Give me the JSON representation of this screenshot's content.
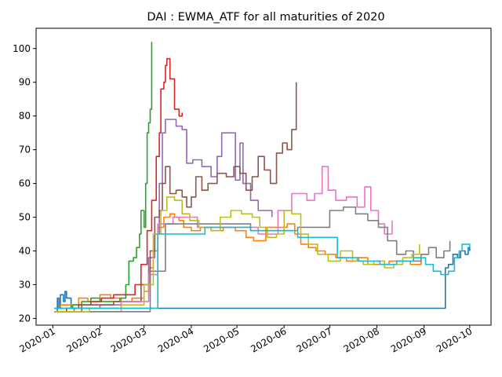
{
  "chart_data": {
    "type": "line",
    "title": "DAI : EWMA_ATF for all maturities of 2020",
    "xlabel": "",
    "ylabel": "",
    "grid": false,
    "legend": "none",
    "x_ticks": [
      "2020-01",
      "2020-02",
      "2020-03",
      "2020-04",
      "2020-05",
      "2020-06",
      "2020-07",
      "2020-08",
      "2020-09",
      "2020-10"
    ],
    "y_ticks": [
      20,
      30,
      40,
      50,
      60,
      70,
      80,
      90,
      100
    ],
    "xlim": [
      "2019-12-21",
      "2020-10-15"
    ],
    "ylim": [
      18,
      106
    ],
    "series": [
      {
        "color": "#1f77b4",
        "points": [
          [
            "2020-01-02",
            22
          ],
          [
            "2020-01-04",
            26
          ],
          [
            "2020-01-05",
            23
          ],
          [
            "2020-01-06",
            27
          ],
          [
            "2020-01-08",
            25
          ],
          [
            "2020-01-09",
            28
          ],
          [
            "2020-01-10",
            26
          ],
          [
            "2020-01-13",
            23
          ],
          [
            "2020-09-15",
            35
          ],
          [
            "2020-09-17",
            36
          ],
          [
            "2020-09-20",
            39
          ],
          [
            "2020-09-23",
            38
          ],
          [
            "2020-09-25",
            40
          ],
          [
            "2020-09-28",
            39
          ],
          [
            "2020-09-30",
            41
          ],
          [
            "2020-10-01",
            40
          ]
        ]
      },
      {
        "color": "#ff7f0e",
        "points": [
          [
            "2020-01-02",
            23
          ],
          [
            "2020-01-06",
            24
          ],
          [
            "2020-01-12",
            24
          ],
          [
            "2020-01-18",
            26
          ],
          [
            "2020-01-24",
            25
          ],
          [
            "2020-02-01",
            27
          ],
          [
            "2020-02-08",
            26
          ],
          [
            "2020-02-15",
            25
          ],
          [
            "2020-02-22",
            26
          ],
          [
            "2020-03-01",
            28
          ],
          [
            "2020-03-04",
            35
          ],
          [
            "2020-03-07",
            40
          ],
          [
            "2020-03-10",
            47
          ],
          [
            "2020-03-14",
            50
          ],
          [
            "2020-03-18",
            51
          ],
          [
            "2020-03-21",
            50
          ],
          [
            "2020-03-24",
            49
          ],
          [
            "2020-03-27",
            47
          ],
          [
            "2020-04-01",
            46
          ],
          [
            "2020-04-07",
            47
          ],
          [
            "2020-04-14",
            46
          ],
          [
            "2020-04-22",
            47
          ],
          [
            "2020-04-30",
            46
          ],
          [
            "2020-05-07",
            44
          ],
          [
            "2020-05-12",
            43
          ],
          [
            "2020-05-20",
            47
          ],
          [
            "2020-05-28",
            47
          ],
          [
            "2020-06-03",
            48
          ],
          [
            "2020-06-08",
            45
          ],
          [
            "2020-06-12",
            42
          ],
          [
            "2020-06-17",
            41
          ],
          [
            "2020-06-22",
            40
          ],
          [
            "2020-06-28",
            39
          ],
          [
            "2020-07-05",
            38
          ],
          [
            "2020-07-12",
            37
          ],
          [
            "2020-07-19",
            38
          ],
          [
            "2020-07-26",
            36
          ],
          [
            "2020-08-02",
            36
          ],
          [
            "2020-08-09",
            37
          ],
          [
            "2020-08-16",
            37
          ],
          [
            "2020-08-23",
            36
          ],
          [
            "2020-08-30",
            39
          ],
          [
            "2020-09-03",
            39
          ]
        ]
      },
      {
        "color": "#2ca02c",
        "points": [
          [
            "2020-01-02",
            23
          ],
          [
            "2020-01-08",
            23
          ],
          [
            "2020-01-14",
            24
          ],
          [
            "2020-01-20",
            25
          ],
          [
            "2020-01-26",
            26
          ],
          [
            "2020-02-01",
            25
          ],
          [
            "2020-02-08",
            25
          ],
          [
            "2020-02-14",
            26
          ],
          [
            "2020-02-18",
            30
          ],
          [
            "2020-02-20",
            37
          ],
          [
            "2020-02-23",
            38
          ],
          [
            "2020-02-25",
            41
          ],
          [
            "2020-02-27",
            45
          ],
          [
            "2020-02-28",
            52
          ],
          [
            "2020-03-01",
            47
          ],
          [
            "2020-03-02",
            60
          ],
          [
            "2020-03-03",
            75
          ],
          [
            "2020-03-04",
            78
          ],
          [
            "2020-03-05",
            82
          ],
          [
            "2020-03-06",
            102
          ]
        ]
      },
      {
        "color": "#d62728",
        "points": [
          [
            "2020-01-02",
            22
          ],
          [
            "2020-01-10",
            23
          ],
          [
            "2020-01-18",
            24
          ],
          [
            "2020-01-26",
            25
          ],
          [
            "2020-02-02",
            26
          ],
          [
            "2020-02-10",
            27
          ],
          [
            "2020-02-18",
            27
          ],
          [
            "2020-02-24",
            30
          ],
          [
            "2020-02-28",
            36
          ],
          [
            "2020-03-03",
            46
          ],
          [
            "2020-03-06",
            55
          ],
          [
            "2020-03-09",
            68
          ],
          [
            "2020-03-11",
            75
          ],
          [
            "2020-03-12",
            88
          ],
          [
            "2020-03-14",
            90
          ],
          [
            "2020-03-15",
            95
          ],
          [
            "2020-03-16",
            97
          ],
          [
            "2020-03-18",
            91
          ],
          [
            "2020-03-21",
            82
          ],
          [
            "2020-03-24",
            80
          ],
          [
            "2020-03-26",
            81
          ]
        ]
      },
      {
        "color": "#9467bd",
        "points": [
          [
            "2020-01-02",
            22
          ],
          [
            "2020-01-15",
            23
          ],
          [
            "2020-02-01",
            24
          ],
          [
            "2020-02-15",
            25
          ],
          [
            "2020-02-28",
            30
          ],
          [
            "2020-03-04",
            38
          ],
          [
            "2020-03-08",
            45
          ],
          [
            "2020-03-11",
            60
          ],
          [
            "2020-03-13",
            75
          ],
          [
            "2020-03-15",
            79
          ],
          [
            "2020-03-18",
            79
          ],
          [
            "2020-03-22",
            77
          ],
          [
            "2020-03-26",
            76
          ],
          [
            "2020-03-29",
            66
          ],
          [
            "2020-04-02",
            67
          ],
          [
            "2020-04-08",
            65
          ],
          [
            "2020-04-14",
            62
          ],
          [
            "2020-04-18",
            68
          ],
          [
            "2020-04-21",
            75
          ],
          [
            "2020-04-27",
            75
          ],
          [
            "2020-04-30",
            61
          ],
          [
            "2020-05-03",
            72
          ],
          [
            "2020-05-05",
            60
          ],
          [
            "2020-05-10",
            55
          ],
          [
            "2020-05-15",
            52
          ],
          [
            "2020-05-20",
            52
          ],
          [
            "2020-05-24",
            50
          ]
        ]
      },
      {
        "color": "#8c564b",
        "points": [
          [
            "2020-01-02",
            22
          ],
          [
            "2020-01-20",
            24
          ],
          [
            "2020-02-10",
            25
          ],
          [
            "2020-02-28",
            30
          ],
          [
            "2020-03-05",
            40
          ],
          [
            "2020-03-08",
            50
          ],
          [
            "2020-03-11",
            52
          ],
          [
            "2020-03-13",
            60
          ],
          [
            "2020-03-15",
            65
          ],
          [
            "2020-03-18",
            57
          ],
          [
            "2020-03-22",
            58
          ],
          [
            "2020-03-26",
            56
          ],
          [
            "2020-03-29",
            53
          ],
          [
            "2020-04-01",
            56
          ],
          [
            "2020-04-04",
            62
          ],
          [
            "2020-04-08",
            58
          ],
          [
            "2020-04-12",
            60
          ],
          [
            "2020-04-18",
            63
          ],
          [
            "2020-04-24",
            62
          ],
          [
            "2020-04-29",
            65
          ],
          [
            "2020-05-03",
            63
          ],
          [
            "2020-05-07",
            58
          ],
          [
            "2020-05-11",
            62
          ],
          [
            "2020-05-15",
            68
          ],
          [
            "2020-05-19",
            64
          ],
          [
            "2020-05-23",
            60
          ],
          [
            "2020-05-27",
            69
          ],
          [
            "2020-05-31",
            72
          ],
          [
            "2020-06-03",
            70
          ],
          [
            "2020-06-06",
            76
          ],
          [
            "2020-06-09",
            90
          ]
        ]
      },
      {
        "color": "#e377c2",
        "points": [
          [
            "2020-01-02",
            22
          ],
          [
            "2020-02-15",
            25
          ],
          [
            "2020-03-04",
            33
          ],
          [
            "2020-03-10",
            48
          ],
          [
            "2020-03-20",
            50
          ],
          [
            "2020-04-05",
            47
          ],
          [
            "2020-04-25",
            47
          ],
          [
            "2020-05-15",
            45
          ],
          [
            "2020-05-28",
            52
          ],
          [
            "2020-06-06",
            57
          ],
          [
            "2020-06-16",
            55
          ],
          [
            "2020-06-21",
            57
          ],
          [
            "2020-06-26",
            65
          ],
          [
            "2020-06-30",
            58
          ],
          [
            "2020-07-05",
            55
          ],
          [
            "2020-07-12",
            56
          ],
          [
            "2020-07-19",
            53
          ],
          [
            "2020-07-24",
            59
          ],
          [
            "2020-07-28",
            52
          ],
          [
            "2020-08-02",
            48
          ],
          [
            "2020-08-06",
            45
          ],
          [
            "2020-08-11",
            49
          ]
        ]
      },
      {
        "color": "#7f7f7f",
        "points": [
          [
            "2020-01-02",
            22
          ],
          [
            "2020-03-05",
            34
          ],
          [
            "2020-03-15",
            48
          ],
          [
            "2020-04-10",
            48
          ],
          [
            "2020-05-10",
            46
          ],
          [
            "2020-06-10",
            47
          ],
          [
            "2020-07-01",
            52
          ],
          [
            "2020-07-10",
            53
          ],
          [
            "2020-07-18",
            51
          ],
          [
            "2020-07-26",
            49
          ],
          [
            "2020-08-02",
            47
          ],
          [
            "2020-08-08",
            43
          ],
          [
            "2020-08-14",
            39
          ],
          [
            "2020-08-20",
            40
          ],
          [
            "2020-08-25",
            37
          ],
          [
            "2020-08-30",
            39
          ],
          [
            "2020-09-04",
            41
          ],
          [
            "2020-09-09",
            38
          ],
          [
            "2020-09-14",
            40
          ],
          [
            "2020-09-18",
            43
          ]
        ]
      },
      {
        "color": "#bcbd22",
        "points": [
          [
            "2020-01-02",
            22
          ],
          [
            "2020-01-25",
            23
          ],
          [
            "2020-02-15",
            24
          ],
          [
            "2020-03-01",
            30
          ],
          [
            "2020-03-07",
            45
          ],
          [
            "2020-03-12",
            52
          ],
          [
            "2020-03-16",
            56
          ],
          [
            "2020-03-21",
            55
          ],
          [
            "2020-03-26",
            51
          ],
          [
            "2020-03-31",
            49
          ],
          [
            "2020-04-06",
            47
          ],
          [
            "2020-04-14",
            46
          ],
          [
            "2020-04-20",
            50
          ],
          [
            "2020-04-27",
            52
          ],
          [
            "2020-05-04",
            51
          ],
          [
            "2020-05-11",
            50
          ],
          [
            "2020-05-16",
            47
          ],
          [
            "2020-05-21",
            44
          ],
          [
            "2020-05-27",
            45
          ],
          [
            "2020-06-01",
            52
          ],
          [
            "2020-06-06",
            51
          ],
          [
            "2020-06-12",
            45
          ],
          [
            "2020-06-17",
            42
          ],
          [
            "2020-06-23",
            39
          ],
          [
            "2020-06-30",
            37
          ],
          [
            "2020-07-08",
            40
          ],
          [
            "2020-07-16",
            37
          ],
          [
            "2020-07-23",
            36
          ],
          [
            "2020-07-30",
            37
          ],
          [
            "2020-08-06",
            35
          ],
          [
            "2020-08-12",
            36
          ],
          [
            "2020-08-18",
            38
          ],
          [
            "2020-08-24",
            39
          ],
          [
            "2020-08-29",
            42
          ]
        ]
      },
      {
        "color": "#17becf",
        "points": [
          [
            "2020-01-02",
            23
          ],
          [
            "2020-03-10",
            45
          ],
          [
            "2020-04-10",
            47
          ],
          [
            "2020-05-10",
            46
          ],
          [
            "2020-06-10",
            44
          ],
          [
            "2020-07-06",
            38
          ],
          [
            "2020-07-20",
            37
          ],
          [
            "2020-08-03",
            36
          ],
          [
            "2020-08-14",
            37
          ],
          [
            "2020-08-25",
            38
          ],
          [
            "2020-09-02",
            36
          ],
          [
            "2020-09-07",
            34
          ],
          [
            "2020-09-12",
            33
          ],
          [
            "2020-09-17",
            34
          ],
          [
            "2020-09-21",
            38
          ],
          [
            "2020-09-24",
            40
          ],
          [
            "2020-09-26",
            42
          ],
          [
            "2020-09-29",
            42
          ],
          [
            "2020-10-01",
            41
          ]
        ]
      }
    ]
  }
}
